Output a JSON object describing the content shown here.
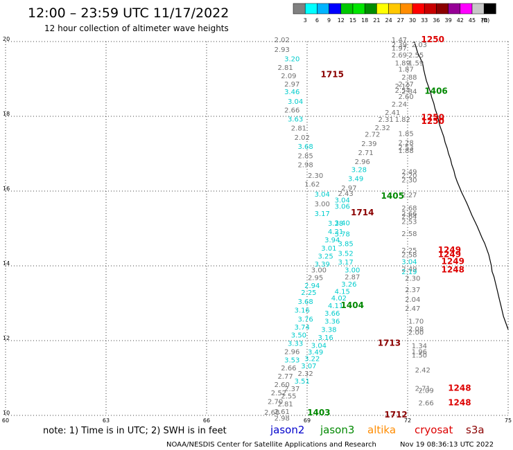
{
  "title": "12:00 – 23:59 UTC 11/17/2022",
  "subtitle": "12 hour collection of altimeter wave heights",
  "colorbar": {
    "colors": [
      "#808080",
      "#00ffff",
      "#00b4ff",
      "#0000ff",
      "#00c800",
      "#00e600",
      "#008c00",
      "#ffff00",
      "#ffc800",
      "#ff8c00",
      "#ff0000",
      "#c80000",
      "#8b0000",
      "#960096",
      "#ff00ff",
      "#c8c8c8",
      "#000000"
    ],
    "labels": [
      "3",
      "6",
      "9",
      "12",
      "15",
      "18",
      "21",
      "24",
      "27",
      "30",
      "33",
      "36",
      "39",
      "42",
      "45",
      "70",
      "(ft)"
    ]
  },
  "note": "note: 1) Time is in UTC; 2) SWH is in feet",
  "satellites": [
    {
      "name": "jason2",
      "color": "#0000cc"
    },
    {
      "name": "jason3",
      "color": "#008800"
    },
    {
      "name": "altika",
      "color": "#ff8c00"
    },
    {
      "name": "cryosat",
      "color": "#dd0000"
    },
    {
      "name": "s3a",
      "color": "#8b0000"
    }
  ],
  "credit": "NOAA/NESDIS Center for Satellite Applications and Research",
  "generated": "Nov 19 08:36:13 UTC 2022",
  "chart_data": {
    "type": "scatter",
    "x_ticks": [
      "60",
      "63",
      "66",
      "69",
      "72",
      "75"
    ],
    "y_ticks": [
      "10",
      "12",
      "14",
      "16",
      "18",
      "20"
    ],
    "xlim": [
      60,
      75
    ],
    "ylim": [
      10,
      20
    ],
    "grid": true,
    "colors": {
      "gray": "#707070",
      "cyan": "#00cccc",
      "darkred": "#8b0000",
      "green": "#008800",
      "red": "#dd0000"
    },
    "points": [
      {
        "x": 68.25,
        "y": 19.98,
        "v": "2.02",
        "c": "gray"
      },
      {
        "x": 68.25,
        "y": 19.72,
        "v": "2.93",
        "c": "gray"
      },
      {
        "x": 68.55,
        "y": 19.47,
        "v": "3.20",
        "c": "cyan"
      },
      {
        "x": 68.35,
        "y": 19.24,
        "v": "2.81",
        "c": "gray"
      },
      {
        "x": 68.45,
        "y": 19.02,
        "v": "2.09",
        "c": "gray"
      },
      {
        "x": 68.55,
        "y": 18.8,
        "v": "2.97",
        "c": "gray"
      },
      {
        "x": 68.55,
        "y": 18.59,
        "v": "3.46",
        "c": "cyan"
      },
      {
        "x": 68.65,
        "y": 18.33,
        "v": "3.04",
        "c": "cyan"
      },
      {
        "x": 68.55,
        "y": 18.1,
        "v": "2.66",
        "c": "gray"
      },
      {
        "x": 68.65,
        "y": 17.86,
        "v": "3.63",
        "c": "cyan"
      },
      {
        "x": 68.75,
        "y": 17.62,
        "v": "2.81",
        "c": "gray"
      },
      {
        "x": 68.85,
        "y": 17.37,
        "v": "2.02",
        "c": "gray"
      },
      {
        "x": 68.95,
        "y": 17.13,
        "v": "3.68",
        "c": "cyan"
      },
      {
        "x": 68.95,
        "y": 16.88,
        "v": "2.85",
        "c": "gray"
      },
      {
        "x": 68.95,
        "y": 16.64,
        "v": "2.98",
        "c": "gray"
      },
      {
        "x": 69.25,
        "y": 16.35,
        "v": "2.30",
        "c": "gray"
      },
      {
        "x": 69.15,
        "y": 16.12,
        "v": "1.62",
        "c": "gray"
      },
      {
        "x": 69.45,
        "y": 15.85,
        "v": "3.04",
        "c": "cyan"
      },
      {
        "x": 69.45,
        "y": 15.59,
        "v": "3.00",
        "c": "gray"
      },
      {
        "x": 69.45,
        "y": 15.33,
        "v": "3.17",
        "c": "cyan"
      },
      {
        "x": 69.85,
        "y": 15.07,
        "v": "3.28",
        "c": "cyan"
      },
      {
        "x": 70.05,
        "y": 14.79,
        "v": "3.78",
        "c": "cyan"
      },
      {
        "x": 70.15,
        "y": 14.53,
        "v": "3.85",
        "c": "cyan"
      },
      {
        "x": 70.15,
        "y": 14.27,
        "v": "3.52",
        "c": "cyan"
      },
      {
        "x": 70.15,
        "y": 14.04,
        "v": "3.17",
        "c": "cyan"
      },
      {
        "x": 70.35,
        "y": 13.82,
        "v": "3.00",
        "c": "cyan"
      },
      {
        "x": 70.35,
        "y": 13.64,
        "v": "2.87",
        "c": "gray"
      },
      {
        "x": 70.25,
        "y": 13.44,
        "v": "3.26",
        "c": "cyan"
      },
      {
        "x": 70.05,
        "y": 13.25,
        "v": "4.15",
        "c": "cyan"
      },
      {
        "x": 69.95,
        "y": 13.07,
        "v": "4.02",
        "c": "cyan"
      },
      {
        "x": 69.85,
        "y": 12.87,
        "v": "4.11",
        "c": "cyan"
      },
      {
        "x": 69.75,
        "y": 12.67,
        "v": "3.66",
        "c": "cyan"
      },
      {
        "x": 69.75,
        "y": 12.45,
        "v": "3.36",
        "c": "cyan"
      },
      {
        "x": 69.65,
        "y": 12.23,
        "v": "3.38",
        "c": "cyan"
      },
      {
        "x": 69.55,
        "y": 12.02,
        "v": "3.16",
        "c": "cyan"
      },
      {
        "x": 69.35,
        "y": 11.81,
        "v": "3.04",
        "c": "cyan"
      },
      {
        "x": 69.25,
        "y": 11.63,
        "v": "3.49",
        "c": "cyan"
      },
      {
        "x": 69.15,
        "y": 11.45,
        "v": "3.22",
        "c": "cyan"
      },
      {
        "x": 69.05,
        "y": 11.26,
        "v": "3.07",
        "c": "cyan"
      },
      {
        "x": 68.95,
        "y": 11.06,
        "v": "2.32",
        "c": "gray"
      },
      {
        "x": 68.85,
        "y": 10.85,
        "v": "3.51",
        "c": "cyan"
      },
      {
        "x": 68.55,
        "y": 10.65,
        "v": "2.37",
        "c": "gray"
      },
      {
        "x": 68.45,
        "y": 10.45,
        "v": "2.55",
        "c": "gray"
      },
      {
        "x": 68.35,
        "y": 10.24,
        "v": "2.81",
        "c": "gray"
      },
      {
        "x": 68.25,
        "y": 10.04,
        "v": "2.61",
        "c": "gray"
      },
      {
        "x": 68.25,
        "y": 9.86,
        "v": "2.98",
        "c": "gray"
      },
      {
        "x": 71.75,
        "y": 19.98,
        "v": "1.47",
        "c": "gray"
      },
      {
        "x": 71.75,
        "y": 19.85,
        "v": "2.39",
        "c": "gray"
      },
      {
        "x": 71.75,
        "y": 19.76,
        "v": "1.97",
        "c": "gray"
      },
      {
        "x": 72.35,
        "y": 19.85,
        "v": "2.03",
        "c": "gray"
      },
      {
        "x": 71.75,
        "y": 19.57,
        "v": "2.69",
        "c": "gray"
      },
      {
        "x": 72.25,
        "y": 19.57,
        "v": "2.55",
        "c": "gray"
      },
      {
        "x": 71.85,
        "y": 19.36,
        "v": "1.89",
        "c": "gray"
      },
      {
        "x": 72.25,
        "y": 19.36,
        "v": "1.59",
        "c": "gray"
      },
      {
        "x": 71.95,
        "y": 19.19,
        "v": "1.87",
        "c": "gray"
      },
      {
        "x": 72.05,
        "y": 18.98,
        "v": "2.88",
        "c": "gray"
      },
      {
        "x": 71.95,
        "y": 18.8,
        "v": "2.27",
        "c": "gray"
      },
      {
        "x": 71.85,
        "y": 18.74,
        "v": "2.12",
        "c": "gray"
      },
      {
        "x": 71.85,
        "y": 18.63,
        "v": "2.54",
        "c": "gray"
      },
      {
        "x": 72.05,
        "y": 18.6,
        "v": "2.34",
        "c": "gray"
      },
      {
        "x": 71.95,
        "y": 18.46,
        "v": "2.60",
        "c": "gray"
      },
      {
        "x": 71.75,
        "y": 18.26,
        "v": "2.24",
        "c": "gray"
      },
      {
        "x": 71.55,
        "y": 18.04,
        "v": "2.41",
        "c": "gray"
      },
      {
        "x": 71.35,
        "y": 17.85,
        "v": "2.31",
        "c": "gray"
      },
      {
        "x": 71.85,
        "y": 17.85,
        "v": "1.82",
        "c": "gray"
      },
      {
        "x": 71.25,
        "y": 17.63,
        "v": "2.32",
        "c": "gray"
      },
      {
        "x": 71.95,
        "y": 17.47,
        "v": "1.85",
        "c": "gray"
      },
      {
        "x": 70.95,
        "y": 17.45,
        "v": "2.72",
        "c": "gray"
      },
      {
        "x": 71.95,
        "y": 17.23,
        "v": "2.28",
        "c": "gray"
      },
      {
        "x": 70.85,
        "y": 17.2,
        "v": "2.39",
        "c": "gray"
      },
      {
        "x": 71.95,
        "y": 17.1,
        "v": "2.53",
        "c": "gray"
      },
      {
        "x": 71.95,
        "y": 17.02,
        "v": "1.88",
        "c": "gray"
      },
      {
        "x": 70.75,
        "y": 16.96,
        "v": "2.71",
        "c": "gray"
      },
      {
        "x": 70.65,
        "y": 16.72,
        "v": "2.96",
        "c": "gray"
      },
      {
        "x": 70.55,
        "y": 16.51,
        "v": "3.28",
        "c": "cyan"
      },
      {
        "x": 70.45,
        "y": 16.27,
        "v": "3.49",
        "c": "cyan"
      },
      {
        "x": 72.05,
        "y": 16.45,
        "v": "2.49",
        "c": "gray"
      },
      {
        "x": 72.05,
        "y": 16.35,
        "v": "2.20",
        "c": "gray"
      },
      {
        "x": 72.05,
        "y": 16.23,
        "v": "2.30",
        "c": "gray"
      },
      {
        "x": 70.25,
        "y": 16.02,
        "v": "2.97",
        "c": "gray"
      },
      {
        "x": 70.15,
        "y": 15.87,
        "v": "2.43",
        "c": "gray"
      },
      {
        "x": 70.05,
        "y": 15.69,
        "v": "3.04",
        "c": "cyan"
      },
      {
        "x": 70.05,
        "y": 15.53,
        "v": "3.06",
        "c": "cyan"
      },
      {
        "x": 72.05,
        "y": 15.83,
        "v": "2.27",
        "c": "gray"
      },
      {
        "x": 72.05,
        "y": 15.48,
        "v": "2.68",
        "c": "gray"
      },
      {
        "x": 72.05,
        "y": 15.33,
        "v": "2.66",
        "c": "gray"
      },
      {
        "x": 72.05,
        "y": 15.26,
        "v": "2.64",
        "c": "gray"
      },
      {
        "x": 72.05,
        "y": 15.12,
        "v": "2.53",
        "c": "gray"
      },
      {
        "x": 70.05,
        "y": 15.08,
        "v": "3.40",
        "c": "cyan"
      },
      {
        "x": 69.85,
        "y": 14.85,
        "v": "4.21",
        "c": "cyan"
      },
      {
        "x": 69.75,
        "y": 14.63,
        "v": "3.94",
        "c": "cyan"
      },
      {
        "x": 72.05,
        "y": 14.8,
        "v": "2.58",
        "c": "gray"
      },
      {
        "x": 69.65,
        "y": 14.41,
        "v": "3.01",
        "c": "cyan"
      },
      {
        "x": 69.55,
        "y": 14.19,
        "v": "3.25",
        "c": "cyan"
      },
      {
        "x": 69.45,
        "y": 13.98,
        "v": "3.39",
        "c": "cyan"
      },
      {
        "x": 69.35,
        "y": 13.82,
        "v": "3.00",
        "c": "gray"
      },
      {
        "x": 69.25,
        "y": 13.62,
        "v": "2.95",
        "c": "gray"
      },
      {
        "x": 69.15,
        "y": 13.41,
        "v": "2.94",
        "c": "cyan"
      },
      {
        "x": 69.05,
        "y": 13.22,
        "v": "2.25",
        "c": "cyan"
      },
      {
        "x": 68.95,
        "y": 12.98,
        "v": "3.68",
        "c": "cyan"
      },
      {
        "x": 68.85,
        "y": 12.75,
        "v": "3.16",
        "c": "cyan"
      },
      {
        "x": 68.95,
        "y": 12.51,
        "v": "3.76",
        "c": "cyan"
      },
      {
        "x": 68.85,
        "y": 12.3,
        "v": "3.74",
        "c": "cyan"
      },
      {
        "x": 68.75,
        "y": 12.08,
        "v": "3.50",
        "c": "cyan"
      },
      {
        "x": 68.65,
        "y": 11.86,
        "v": "3.33",
        "c": "cyan"
      },
      {
        "x": 68.55,
        "y": 11.64,
        "v": "2.96",
        "c": "gray"
      },
      {
        "x": 68.55,
        "y": 11.42,
        "v": "3.53",
        "c": "cyan"
      },
      {
        "x": 68.45,
        "y": 11.2,
        "v": "2.66",
        "c": "gray"
      },
      {
        "x": 68.35,
        "y": 10.98,
        "v": "2.77",
        "c": "gray"
      },
      {
        "x": 68.25,
        "y": 10.76,
        "v": "2.60",
        "c": "gray"
      },
      {
        "x": 68.15,
        "y": 10.54,
        "v": "2.52",
        "c": "gray"
      },
      {
        "x": 68.05,
        "y": 10.31,
        "v": "2.70",
        "c": "gray"
      },
      {
        "x": 67.95,
        "y": 10.02,
        "v": "2.68",
        "c": "gray"
      },
      {
        "x": 72.05,
        "y": 14.35,
        "v": "2.25",
        "c": "gray"
      },
      {
        "x": 72.05,
        "y": 14.23,
        "v": "2.58",
        "c": "gray"
      },
      {
        "x": 72.05,
        "y": 14.05,
        "v": "3.04",
        "c": "cyan"
      },
      {
        "x": 72.05,
        "y": 13.85,
        "v": "2.49",
        "c": "gray"
      },
      {
        "x": 72.05,
        "y": 13.78,
        "v": "2.19",
        "c": "cyan"
      },
      {
        "x": 72.15,
        "y": 13.6,
        "v": "2.30",
        "c": "gray"
      },
      {
        "x": 72.15,
        "y": 13.3,
        "v": "2.37",
        "c": "gray"
      },
      {
        "x": 72.15,
        "y": 13.04,
        "v": "2.04",
        "c": "gray"
      },
      {
        "x": 72.15,
        "y": 12.8,
        "v": "2.47",
        "c": "gray"
      },
      {
        "x": 72.25,
        "y": 12.45,
        "v": "1.70",
        "c": "gray"
      },
      {
        "x": 72.25,
        "y": 12.25,
        "v": "2.08",
        "c": "gray"
      },
      {
        "x": 72.25,
        "y": 12.16,
        "v": "2.00",
        "c": "gray"
      },
      {
        "x": 72.35,
        "y": 11.8,
        "v": "1.34",
        "c": "gray"
      },
      {
        "x": 72.35,
        "y": 11.64,
        "v": "1.96",
        "c": "gray"
      },
      {
        "x": 72.35,
        "y": 11.55,
        "v": "1.50",
        "c": "gray"
      },
      {
        "x": 72.45,
        "y": 11.15,
        "v": "2.42",
        "c": "gray"
      },
      {
        "x": 72.45,
        "y": 10.66,
        "v": "2.71",
        "c": "gray"
      },
      {
        "x": 72.55,
        "y": 10.6,
        "v": "2.09",
        "c": "gray"
      },
      {
        "x": 72.55,
        "y": 10.27,
        "v": "2.66",
        "c": "gray"
      }
    ],
    "times": [
      {
        "x": 72.75,
        "y": 19.98,
        "v": "1250",
        "c": "red"
      },
      {
        "x": 69.75,
        "y": 19.05,
        "v": "1715",
        "c": "darkred"
      },
      {
        "x": 72.85,
        "y": 18.6,
        "v": "1406",
        "c": "green"
      },
      {
        "x": 72.75,
        "y": 17.9,
        "v": "1250",
        "c": "red"
      },
      {
        "x": 72.75,
        "y": 17.8,
        "v": "1250",
        "c": "red"
      },
      {
        "x": 70.65,
        "y": 15.35,
        "v": "1714",
        "c": "darkred"
      },
      {
        "x": 71.55,
        "y": 15.8,
        "v": "1405",
        "c": "green"
      },
      {
        "x": 73.25,
        "y": 14.35,
        "v": "1249",
        "c": "red"
      },
      {
        "x": 73.25,
        "y": 14.23,
        "v": "1249",
        "c": "red"
      },
      {
        "x": 73.35,
        "y": 14.05,
        "v": "1249",
        "c": "red"
      },
      {
        "x": 73.35,
        "y": 13.82,
        "v": "1248",
        "c": "red"
      },
      {
        "x": 70.35,
        "y": 12.87,
        "v": "1404",
        "c": "green"
      },
      {
        "x": 71.45,
        "y": 11.86,
        "v": "1713",
        "c": "darkred"
      },
      {
        "x": 73.55,
        "y": 10.66,
        "v": "1248",
        "c": "red"
      },
      {
        "x": 73.55,
        "y": 10.27,
        "v": "1248",
        "c": "red"
      },
      {
        "x": 69.35,
        "y": 10.0,
        "v": "1403",
        "c": "green"
      },
      {
        "x": 71.65,
        "y": 9.94,
        "v": "1712",
        "c": "darkred"
      }
    ],
    "coastline": [
      [
        72.2,
        20.0
      ],
      [
        72.25,
        19.85
      ],
      [
        72.3,
        19.7
      ],
      [
        72.38,
        19.55
      ],
      [
        72.45,
        19.4
      ],
      [
        72.48,
        19.25
      ],
      [
        72.52,
        19.1
      ],
      [
        72.56,
        18.95
      ],
      [
        72.62,
        18.8
      ],
      [
        72.68,
        18.65
      ],
      [
        72.72,
        18.5
      ],
      [
        72.78,
        18.35
      ],
      [
        72.82,
        18.2
      ],
      [
        72.88,
        18.05
      ],
      [
        72.92,
        17.9
      ],
      [
        72.96,
        17.75
      ],
      [
        73.02,
        17.6
      ],
      [
        73.08,
        17.45
      ],
      [
        73.12,
        17.3
      ],
      [
        73.18,
        17.15
      ],
      [
        73.22,
        17.0
      ],
      [
        73.28,
        16.85
      ],
      [
        73.32,
        16.7
      ],
      [
        73.38,
        16.55
      ],
      [
        73.42,
        16.4
      ],
      [
        73.48,
        16.25
      ],
      [
        73.55,
        16.1
      ],
      [
        73.62,
        15.95
      ],
      [
        73.7,
        15.8
      ],
      [
        73.78,
        15.65
      ],
      [
        73.85,
        15.5
      ],
      [
        73.92,
        15.35
      ],
      [
        74.0,
        15.2
      ],
      [
        74.08,
        15.05
      ],
      [
        74.15,
        14.9
      ],
      [
        74.22,
        14.75
      ],
      [
        74.3,
        14.6
      ],
      [
        74.36,
        14.45
      ],
      [
        74.42,
        14.3
      ],
      [
        74.46,
        14.15
      ],
      [
        74.5,
        14.0
      ],
      [
        74.52,
        13.85
      ],
      [
        74.58,
        13.7
      ],
      [
        74.62,
        13.55
      ],
      [
        74.66,
        13.4
      ],
      [
        74.7,
        13.25
      ],
      [
        74.74,
        13.1
      ],
      [
        74.78,
        12.95
      ],
      [
        74.82,
        12.8
      ],
      [
        74.86,
        12.65
      ],
      [
        74.92,
        12.5
      ],
      [
        75.0,
        12.3
      ]
    ]
  }
}
